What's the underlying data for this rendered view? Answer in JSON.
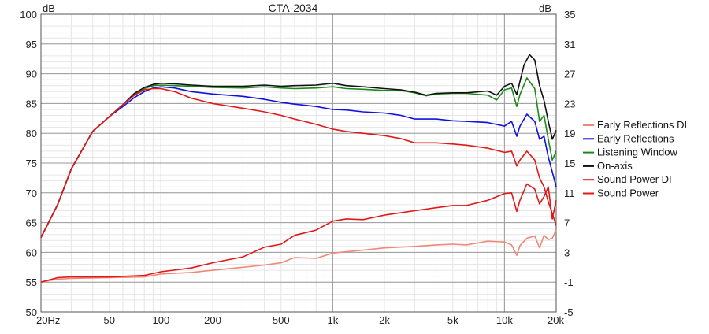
{
  "chart_data": {
    "type": "line",
    "title": "CTA-2034",
    "xscale": "log",
    "xlim": [
      20,
      20000
    ],
    "ylim": [
      50,
      100
    ],
    "ylim_right": [
      -5,
      35
    ],
    "grid": true,
    "legend_position": "right",
    "x_ticks": [
      {
        "value": 20,
        "label": "20Hz"
      },
      {
        "value": 50,
        "label": "50"
      },
      {
        "value": 100,
        "label": "100"
      },
      {
        "value": 200,
        "label": "200"
      },
      {
        "value": 500,
        "label": "500"
      },
      {
        "value": 1000,
        "label": "1k"
      },
      {
        "value": 2000,
        "label": "2k"
      },
      {
        "value": 5000,
        "label": "5k"
      },
      {
        "value": 10000,
        "label": "10k"
      },
      {
        "value": 20000,
        "label": "20k"
      }
    ],
    "y_left_label": "dB",
    "y_left_ticks": [
      50,
      55,
      60,
      65,
      70,
      75,
      80,
      85,
      90,
      95,
      100
    ],
    "y_right_label": "dB",
    "y_right_ticks": [
      -5,
      -1,
      3,
      7,
      11,
      15,
      19,
      23,
      27,
      31,
      35
    ],
    "series": [
      {
        "name": "Early Reflections DI",
        "color": "#f08878",
        "axis": "right",
        "points": [
          [
            20,
            -1
          ],
          [
            25,
            -0.6
          ],
          [
            30,
            -0.5
          ],
          [
            50,
            -0.4
          ],
          [
            80,
            -0.3
          ],
          [
            100,
            0.1
          ],
          [
            150,
            0.3
          ],
          [
            200,
            0.6
          ],
          [
            300,
            1.0
          ],
          [
            400,
            1.3
          ],
          [
            500,
            1.6
          ],
          [
            600,
            2.3
          ],
          [
            800,
            2.2
          ],
          [
            1000,
            2.9
          ],
          [
            1200,
            3.1
          ],
          [
            1500,
            3.3
          ],
          [
            2000,
            3.6
          ],
          [
            3000,
            3.8
          ],
          [
            4000,
            4.0
          ],
          [
            5000,
            4.1
          ],
          [
            6000,
            4.0
          ],
          [
            8000,
            4.5
          ],
          [
            10000,
            4.4
          ],
          [
            11000,
            4.0
          ],
          [
            11800,
            2.6
          ],
          [
            12300,
            3.9
          ],
          [
            13500,
            4.9
          ],
          [
            15000,
            5.2
          ],
          [
            16000,
            3.6
          ],
          [
            17000,
            5.3
          ],
          [
            18000,
            4.7
          ],
          [
            19000,
            4.9
          ],
          [
            20000,
            6.0
          ]
        ]
      },
      {
        "name": "Early Reflections",
        "color": "#1010e0",
        "axis": "left",
        "points": [
          [
            20,
            62.5
          ],
          [
            25,
            68
          ],
          [
            30,
            74
          ],
          [
            40,
            80.3
          ],
          [
            50,
            82.8
          ],
          [
            60,
            84.5
          ],
          [
            70,
            86.0
          ],
          [
            80,
            87.0
          ],
          [
            90,
            87.6
          ],
          [
            100,
            87.8
          ],
          [
            120,
            87.6
          ],
          [
            150,
            87.0
          ],
          [
            200,
            86.6
          ],
          [
            300,
            86.2
          ],
          [
            400,
            85.7
          ],
          [
            500,
            85.2
          ],
          [
            600,
            84.9
          ],
          [
            800,
            84.5
          ],
          [
            1000,
            84.0
          ],
          [
            1200,
            83.9
          ],
          [
            1500,
            83.6
          ],
          [
            2000,
            83.4
          ],
          [
            2500,
            83.0
          ],
          [
            3000,
            82.4
          ],
          [
            4000,
            82.4
          ],
          [
            5000,
            82.1
          ],
          [
            6000,
            82.0
          ],
          [
            8000,
            81.8
          ],
          [
            10000,
            81.2
          ],
          [
            11000,
            82.0
          ],
          [
            11800,
            79.5
          ],
          [
            12300,
            81.2
          ],
          [
            13500,
            83.2
          ],
          [
            15000,
            82.0
          ],
          [
            16000,
            79.0
          ],
          [
            17000,
            79.5
          ],
          [
            18000,
            76.0
          ],
          [
            19000,
            73.5
          ],
          [
            20000,
            71.0
          ]
        ]
      },
      {
        "name": "Listening Window",
        "color": "#1a8a1a",
        "axis": "left",
        "points": [
          [
            20,
            62.5
          ],
          [
            25,
            68
          ],
          [
            30,
            74
          ],
          [
            40,
            80.3
          ],
          [
            50,
            82.8
          ],
          [
            60,
            84.8
          ],
          [
            70,
            86.6
          ],
          [
            80,
            87.5
          ],
          [
            90,
            88.0
          ],
          [
            100,
            88.1
          ],
          [
            120,
            88.0
          ],
          [
            150,
            87.9
          ],
          [
            200,
            87.7
          ],
          [
            300,
            87.6
          ],
          [
            400,
            87.8
          ],
          [
            500,
            87.6
          ],
          [
            600,
            87.5
          ],
          [
            800,
            87.6
          ],
          [
            1000,
            87.8
          ],
          [
            1200,
            87.5
          ],
          [
            1500,
            87.4
          ],
          [
            2000,
            87.2
          ],
          [
            2500,
            87.2
          ],
          [
            3000,
            86.8
          ],
          [
            3500,
            86.3
          ],
          [
            4000,
            86.6
          ],
          [
            5000,
            86.7
          ],
          [
            6000,
            86.7
          ],
          [
            8000,
            86.4
          ],
          [
            9000,
            85.6
          ],
          [
            10000,
            87.3
          ],
          [
            11000,
            87.6
          ],
          [
            11800,
            84.5
          ],
          [
            12300,
            86.5
          ],
          [
            13500,
            89.3
          ],
          [
            15000,
            87.5
          ],
          [
            16000,
            82.0
          ],
          [
            17000,
            83.0
          ],
          [
            18000,
            79.0
          ],
          [
            19000,
            75.5
          ],
          [
            20000,
            77.0
          ]
        ]
      },
      {
        "name": "On-axis",
        "color": "#111111",
        "axis": "left",
        "points": [
          [
            20,
            62.5
          ],
          [
            25,
            68
          ],
          [
            30,
            74
          ],
          [
            40,
            80.3
          ],
          [
            50,
            82.8
          ],
          [
            60,
            84.8
          ],
          [
            70,
            86.7
          ],
          [
            80,
            87.7
          ],
          [
            90,
            88.2
          ],
          [
            100,
            88.4
          ],
          [
            120,
            88.3
          ],
          [
            150,
            88.1
          ],
          [
            200,
            87.9
          ],
          [
            300,
            87.9
          ],
          [
            400,
            88.1
          ],
          [
            500,
            87.9
          ],
          [
            600,
            88.0
          ],
          [
            800,
            88.1
          ],
          [
            1000,
            88.4
          ],
          [
            1200,
            88.0
          ],
          [
            1500,
            87.8
          ],
          [
            2000,
            87.5
          ],
          [
            2500,
            87.3
          ],
          [
            3000,
            86.9
          ],
          [
            3500,
            86.4
          ],
          [
            4000,
            86.7
          ],
          [
            5000,
            86.8
          ],
          [
            6000,
            86.8
          ],
          [
            8000,
            87.1
          ],
          [
            9000,
            86.4
          ],
          [
            10000,
            87.9
          ],
          [
            11000,
            88.4
          ],
          [
            11800,
            86.5
          ],
          [
            12300,
            88.7
          ],
          [
            13000,
            91.5
          ],
          [
            14000,
            93.2
          ],
          [
            15000,
            92.3
          ],
          [
            16000,
            88.0
          ],
          [
            17000,
            85.5
          ],
          [
            18000,
            82.0
          ],
          [
            19000,
            79.0
          ],
          [
            20000,
            80.5
          ]
        ]
      },
      {
        "name": "Sound Power DI",
        "color": "#e01818",
        "axis": "right",
        "points": [
          [
            20,
            -1
          ],
          [
            25,
            -0.4
          ],
          [
            30,
            -0.3
          ],
          [
            50,
            -0.3
          ],
          [
            80,
            -0.1
          ],
          [
            100,
            0.4
          ],
          [
            150,
            0.9
          ],
          [
            200,
            1.6
          ],
          [
            300,
            2.4
          ],
          [
            400,
            3.7
          ],
          [
            500,
            4.1
          ],
          [
            600,
            5.3
          ],
          [
            800,
            6.0
          ],
          [
            1000,
            7.2
          ],
          [
            1200,
            7.5
          ],
          [
            1500,
            7.4
          ],
          [
            2000,
            8.0
          ],
          [
            3000,
            8.6
          ],
          [
            4000,
            9.0
          ],
          [
            5000,
            9.3
          ],
          [
            6000,
            9.3
          ],
          [
            8000,
            10.0
          ],
          [
            10000,
            10.9
          ],
          [
            11000,
            11.0
          ],
          [
            11800,
            8.5
          ],
          [
            12300,
            10.0
          ],
          [
            13500,
            12.2
          ],
          [
            15000,
            11.5
          ],
          [
            16000,
            9.5
          ],
          [
            17000,
            10.5
          ],
          [
            18000,
            11.8
          ],
          [
            19000,
            7.5
          ],
          [
            20000,
            10.0
          ]
        ]
      },
      {
        "name": "Sound Power",
        "color": "#e01818",
        "axis": "left",
        "points": [
          [
            20,
            62.5
          ],
          [
            25,
            68
          ],
          [
            30,
            74
          ],
          [
            40,
            80.3
          ],
          [
            50,
            82.8
          ],
          [
            60,
            84.8
          ],
          [
            70,
            86.4
          ],
          [
            80,
            87.3
          ],
          [
            90,
            87.5
          ],
          [
            100,
            87.5
          ],
          [
            120,
            87.0
          ],
          [
            150,
            85.9
          ],
          [
            200,
            85.0
          ],
          [
            300,
            84.2
          ],
          [
            400,
            83.6
          ],
          [
            500,
            83.0
          ],
          [
            600,
            82.4
          ],
          [
            800,
            81.5
          ],
          [
            1000,
            80.7
          ],
          [
            1200,
            80.3
          ],
          [
            1500,
            80.0
          ],
          [
            2000,
            79.6
          ],
          [
            2500,
            79.1
          ],
          [
            3000,
            78.4
          ],
          [
            4000,
            78.4
          ],
          [
            5000,
            78.2
          ],
          [
            6000,
            78.0
          ],
          [
            8000,
            77.5
          ],
          [
            10000,
            76.8
          ],
          [
            11000,
            77.0
          ],
          [
            11800,
            74.5
          ],
          [
            12300,
            75.5
          ],
          [
            13500,
            77.0
          ],
          [
            15000,
            75.5
          ],
          [
            16000,
            72.5
          ],
          [
            17000,
            71.0
          ],
          [
            18000,
            68.5
          ],
          [
            19000,
            66.5
          ],
          [
            20000,
            64.5
          ]
        ]
      }
    ]
  }
}
